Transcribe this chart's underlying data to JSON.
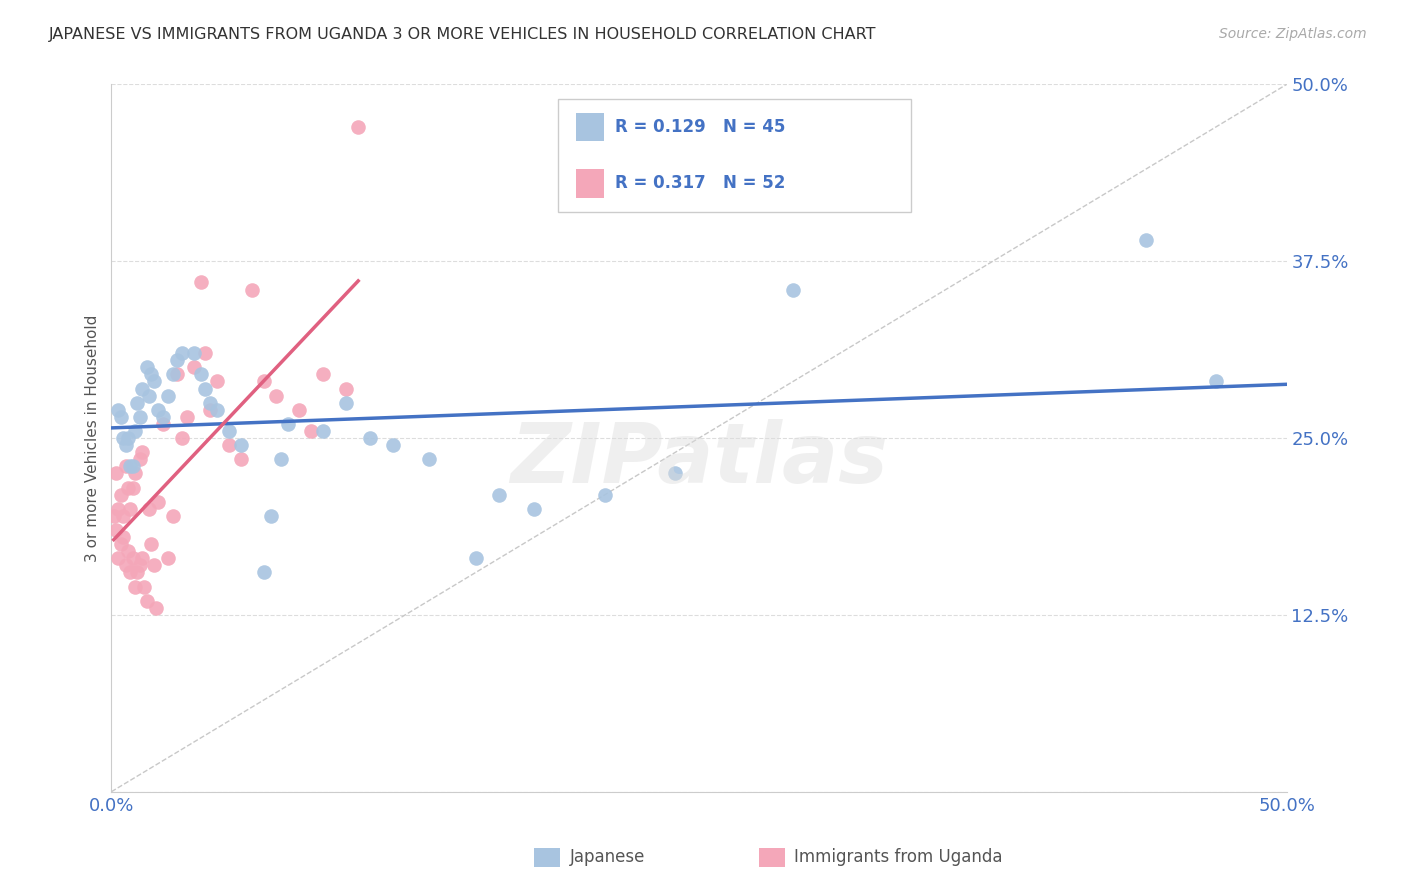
{
  "title": "JAPANESE VS IMMIGRANTS FROM UGANDA 3 OR MORE VEHICLES IN HOUSEHOLD CORRELATION CHART",
  "source": "Source: ZipAtlas.com",
  "ylabel": "3 or more Vehicles in Household",
  "xlim": [
    0.0,
    0.5
  ],
  "ylim": [
    0.0,
    0.5
  ],
  "xticks": [
    0.0,
    0.1,
    0.2,
    0.3,
    0.4,
    0.5
  ],
  "yticks": [
    0.0,
    0.125,
    0.25,
    0.375,
    0.5
  ],
  "xtick_labels": [
    "0.0%",
    "",
    "",
    "",
    "",
    "50.0%"
  ],
  "ytick_labels": [
    "",
    "12.5%",
    "25.0%",
    "37.5%",
    "50.0%"
  ],
  "r_japanese": 0.129,
  "n_japanese": 45,
  "r_uganda": 0.317,
  "n_uganda": 52,
  "color_japanese": "#a8c4e0",
  "color_uganda": "#f4a7b9",
  "line_color_japanese": "#4472c4",
  "line_color_uganda": "#e06080",
  "japanese_x": [
    0.003,
    0.004,
    0.005,
    0.006,
    0.007,
    0.008,
    0.009,
    0.01,
    0.011,
    0.012,
    0.013,
    0.015,
    0.016,
    0.017,
    0.018,
    0.02,
    0.022,
    0.024,
    0.026,
    0.028,
    0.03,
    0.035,
    0.038,
    0.04,
    0.042,
    0.045,
    0.05,
    0.055,
    0.065,
    0.068,
    0.072,
    0.075,
    0.09,
    0.1,
    0.11,
    0.12,
    0.135,
    0.155,
    0.165,
    0.18,
    0.21,
    0.24,
    0.29,
    0.44,
    0.47
  ],
  "japanese_y": [
    0.27,
    0.265,
    0.25,
    0.245,
    0.25,
    0.23,
    0.23,
    0.255,
    0.275,
    0.265,
    0.285,
    0.3,
    0.28,
    0.295,
    0.29,
    0.27,
    0.265,
    0.28,
    0.295,
    0.305,
    0.31,
    0.31,
    0.295,
    0.285,
    0.275,
    0.27,
    0.255,
    0.245,
    0.155,
    0.195,
    0.235,
    0.26,
    0.255,
    0.275,
    0.25,
    0.245,
    0.235,
    0.165,
    0.21,
    0.2,
    0.21,
    0.225,
    0.355,
    0.39,
    0.29
  ],
  "uganda_x": [
    0.001,
    0.002,
    0.002,
    0.003,
    0.003,
    0.004,
    0.004,
    0.005,
    0.005,
    0.006,
    0.006,
    0.007,
    0.007,
    0.008,
    0.008,
    0.009,
    0.009,
    0.01,
    0.01,
    0.011,
    0.012,
    0.012,
    0.013,
    0.013,
    0.014,
    0.015,
    0.016,
    0.017,
    0.018,
    0.019,
    0.02,
    0.022,
    0.024,
    0.026,
    0.028,
    0.03,
    0.032,
    0.035,
    0.038,
    0.04,
    0.042,
    0.045,
    0.05,
    0.055,
    0.06,
    0.065,
    0.07,
    0.08,
    0.085,
    0.09,
    0.1,
    0.105
  ],
  "uganda_y": [
    0.195,
    0.185,
    0.225,
    0.2,
    0.165,
    0.175,
    0.21,
    0.18,
    0.195,
    0.16,
    0.23,
    0.17,
    0.215,
    0.155,
    0.2,
    0.165,
    0.215,
    0.145,
    0.225,
    0.155,
    0.16,
    0.235,
    0.165,
    0.24,
    0.145,
    0.135,
    0.2,
    0.175,
    0.16,
    0.13,
    0.205,
    0.26,
    0.165,
    0.195,
    0.295,
    0.25,
    0.265,
    0.3,
    0.36,
    0.31,
    0.27,
    0.29,
    0.245,
    0.235,
    0.355,
    0.29,
    0.28,
    0.27,
    0.255,
    0.295,
    0.285,
    0.47
  ]
}
